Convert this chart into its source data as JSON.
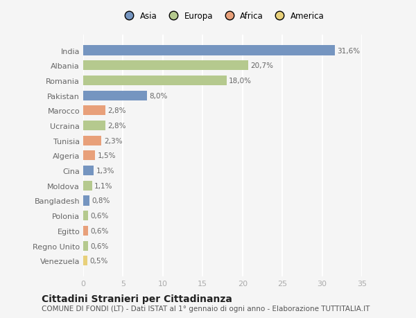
{
  "countries": [
    "India",
    "Albania",
    "Romania",
    "Pakistan",
    "Marocco",
    "Ucraina",
    "Tunisia",
    "Algeria",
    "Cina",
    "Moldova",
    "Bangladesh",
    "Polonia",
    "Egitto",
    "Regno Unito",
    "Venezuela"
  ],
  "values": [
    31.6,
    20.7,
    18.0,
    8.0,
    2.8,
    2.8,
    2.3,
    1.5,
    1.3,
    1.1,
    0.8,
    0.6,
    0.6,
    0.6,
    0.5
  ],
  "labels": [
    "31,6%",
    "20,7%",
    "18,0%",
    "8,0%",
    "2,8%",
    "2,8%",
    "2,3%",
    "1,5%",
    "1,3%",
    "1,1%",
    "0,8%",
    "0,6%",
    "0,6%",
    "0,6%",
    "0,5%"
  ],
  "continents": [
    "Asia",
    "Europa",
    "Europa",
    "Asia",
    "Africa",
    "Europa",
    "Africa",
    "Africa",
    "Asia",
    "Europa",
    "Asia",
    "Europa",
    "Africa",
    "Europa",
    "America"
  ],
  "colors": {
    "Asia": "#7595c0",
    "Europa": "#b5c98e",
    "Africa": "#e8a07a",
    "America": "#e8d07a"
  },
  "legend_order": [
    "Asia",
    "Europa",
    "Africa",
    "America"
  ],
  "xlim": [
    0,
    35
  ],
  "xticks": [
    0,
    5,
    10,
    15,
    20,
    25,
    30,
    35
  ],
  "title": "Cittadini Stranieri per Cittadinanza",
  "subtitle": "COMUNE DI FONDI (LT) - Dati ISTAT al 1° gennaio di ogni anno - Elaborazione TUTTITALIA.IT",
  "bg_color": "#f5f5f5",
  "grid_color": "#ffffff",
  "bar_height": 0.65,
  "title_fontsize": 10,
  "subtitle_fontsize": 7.5,
  "label_fontsize": 7.5,
  "legend_fontsize": 8.5,
  "tick_fontsize": 8
}
